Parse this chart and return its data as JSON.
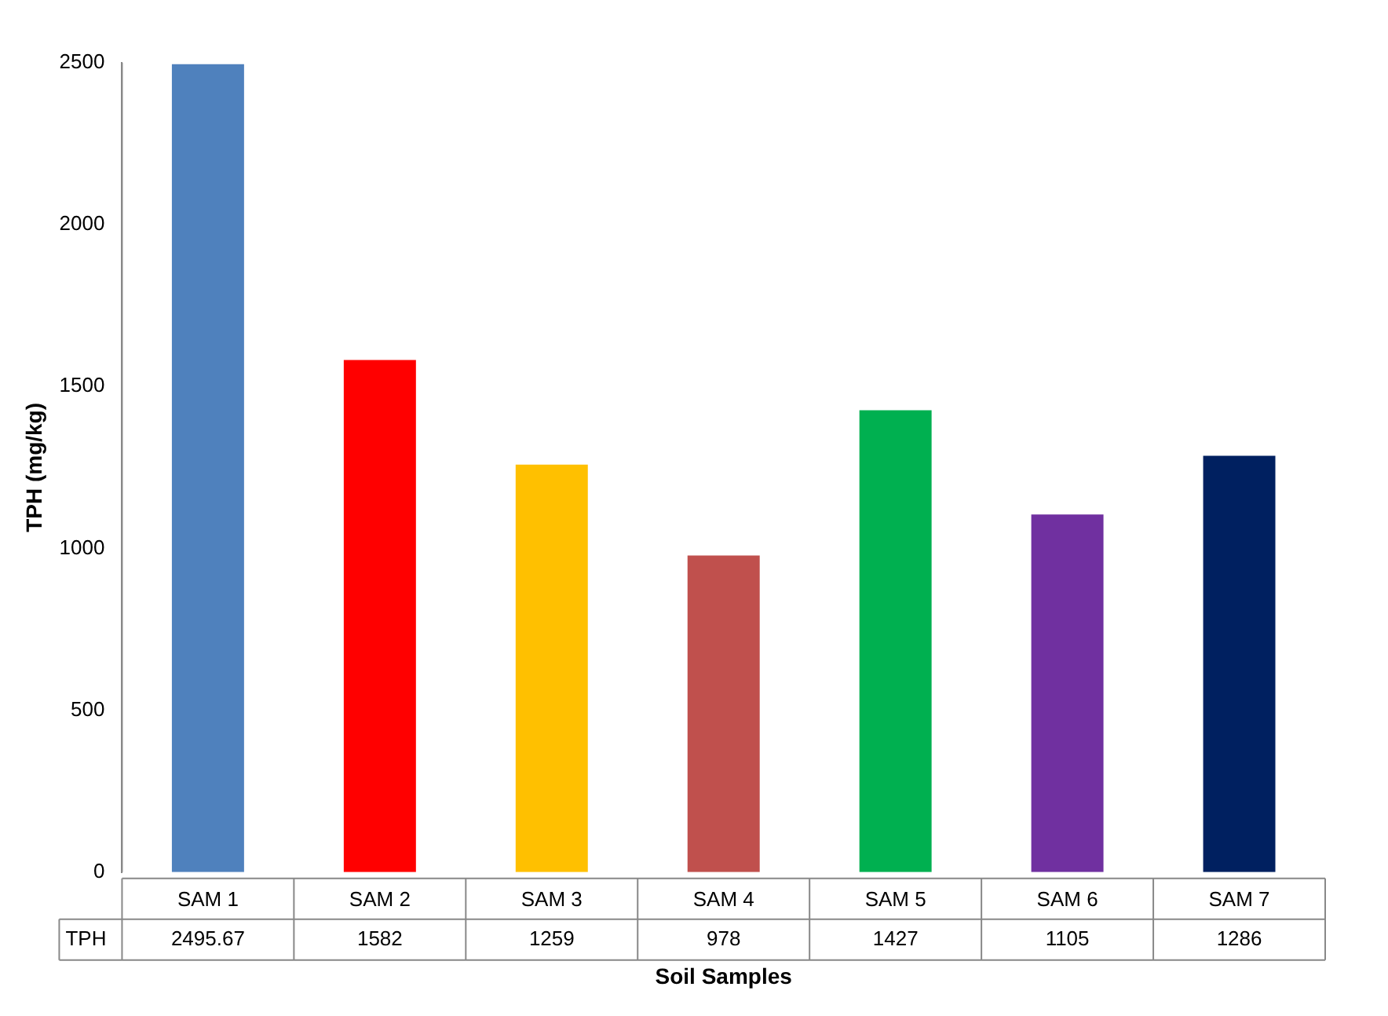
{
  "chart_data": {
    "type": "bar",
    "ylabel": "TPH (mg/kg)",
    "xlabel": "Soil Samples",
    "categories": [
      "SAM 1",
      "SAM 2",
      "SAM 3",
      "SAM 4",
      "SAM 5",
      "SAM 6",
      "SAM 7"
    ],
    "series": [
      {
        "name": "TPH",
        "colors": [
          "#4f81bd",
          "#ff0000",
          "#ffc000",
          "#c0504d",
          "#00b050",
          "#7030a0",
          "#002060"
        ],
        "values": [
          2495.67,
          1582,
          1259,
          978,
          1427,
          1105,
          1286
        ]
      }
    ],
    "ylim": [
      0,
      2500
    ],
    "yticks": [
      0,
      500,
      1000,
      1500,
      2000,
      2500
    ],
    "grid": false,
    "data_labels": true
  }
}
